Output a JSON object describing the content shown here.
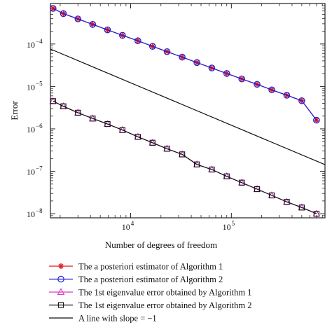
{
  "chart_data": {
    "type": "line",
    "title": "",
    "xlabel": "Number of degrees of freedom",
    "ylabel": "Error",
    "xscale": "log",
    "yscale": "log",
    "xlim": [
      1600,
      850000
    ],
    "ylim": [
      8e-09,
      0.0009
    ],
    "x_ticks": [
      {
        "value": 10000,
        "label": "10",
        "exp": "4"
      },
      {
        "value": 100000,
        "label": "10",
        "exp": "5"
      }
    ],
    "y_ticks": [
      {
        "value": 1e-08,
        "label": "10",
        "exp": "−8"
      },
      {
        "value": 1e-07,
        "label": "10",
        "exp": "−7"
      },
      {
        "value": 1e-06,
        "label": "10",
        "exp": "−6"
      },
      {
        "value": 1e-05,
        "label": "10",
        "exp": "−5"
      },
      {
        "value": 0.0001,
        "label": "10",
        "exp": "−4"
      }
    ],
    "grid": false,
    "legend_position": "below",
    "series": [
      {
        "name": "The a posteriori estimator of Algorithm 1",
        "color": "#e0191e",
        "marker": "asterisk",
        "x": [
          1700,
          2150,
          3000,
          4200,
          5900,
          8300,
          11800,
          16500,
          23000,
          32500,
          45500,
          64000,
          90000,
          127000,
          180000,
          252000,
          355000,
          500000,
          700000
        ],
        "y": [
          0.00069,
          0.00052,
          0.00039,
          0.00029,
          0.000215,
          0.00016,
          0.000119,
          8.8e-05,
          6.6e-05,
          4.9e-05,
          3.65e-05,
          2.72e-05,
          2.02e-05,
          1.5e-05,
          1.12e-05,
          8.3e-06,
          6.2e-06,
          4.6e-06,
          1.6e-06
        ]
      },
      {
        "name": "The a posteriori estimator of Algorithm 2",
        "color": "#1f1fd6",
        "marker": "circle",
        "x": [
          1700,
          2150,
          3000,
          4200,
          5900,
          8300,
          11800,
          16500,
          23000,
          32500,
          45500,
          64000,
          90000,
          127000,
          180000,
          252000,
          355000,
          500000,
          700000
        ],
        "y": [
          0.00069,
          0.00052,
          0.00039,
          0.00029,
          0.000215,
          0.00016,
          0.000119,
          8.8e-05,
          6.6e-05,
          4.9e-05,
          3.65e-05,
          2.72e-05,
          2.02e-05,
          1.5e-05,
          1.12e-05,
          8.3e-06,
          6.2e-06,
          4.6e-06,
          1.6e-06
        ]
      },
      {
        "name": "The 1st eigenvalue error obtained by Algorithm 1",
        "color": "#d63fc8",
        "marker": "triangle",
        "x": [
          1700,
          2150,
          3000,
          4200,
          5900,
          8300,
          11800,
          16500,
          23000,
          32500,
          45500,
          64000,
          90000,
          127000,
          180000,
          252000,
          355000,
          500000,
          700000
        ],
        "y": [
          4.5e-06,
          3.4e-06,
          2.4e-06,
          1.75e-06,
          1.3e-06,
          9.4e-07,
          6.5e-07,
          4.7e-07,
          3.4e-07,
          2.5e-07,
          1.45e-07,
          1.1e-07,
          7.6e-08,
          5.4e-08,
          3.8e-08,
          2.7e-08,
          1.9e-08,
          1.4e-08,
          1e-08
        ]
      },
      {
        "name": "The 1st eigenvalue error obtained by Algorithm 2",
        "color": "#111111",
        "marker": "square",
        "x": [
          1700,
          2150,
          3000,
          4200,
          5900,
          8300,
          11800,
          16500,
          23000,
          32500,
          45500,
          64000,
          90000,
          127000,
          180000,
          252000,
          355000,
          500000,
          700000
        ],
        "y": [
          4.5e-06,
          3.4e-06,
          2.4e-06,
          1.75e-06,
          1.3e-06,
          9.4e-07,
          6.5e-07,
          4.7e-07,
          3.4e-07,
          2.5e-07,
          1.45e-07,
          1.1e-07,
          7.6e-08,
          5.4e-08,
          3.8e-08,
          2.7e-08,
          1.9e-08,
          1.4e-08,
          1e-08
        ]
      },
      {
        "name": "A line with slope = −1",
        "color": "#111111",
        "marker": "none",
        "x": [
          1600,
          850000
        ],
        "y": [
          7.6e-05,
          1.43e-07
        ]
      }
    ]
  }
}
